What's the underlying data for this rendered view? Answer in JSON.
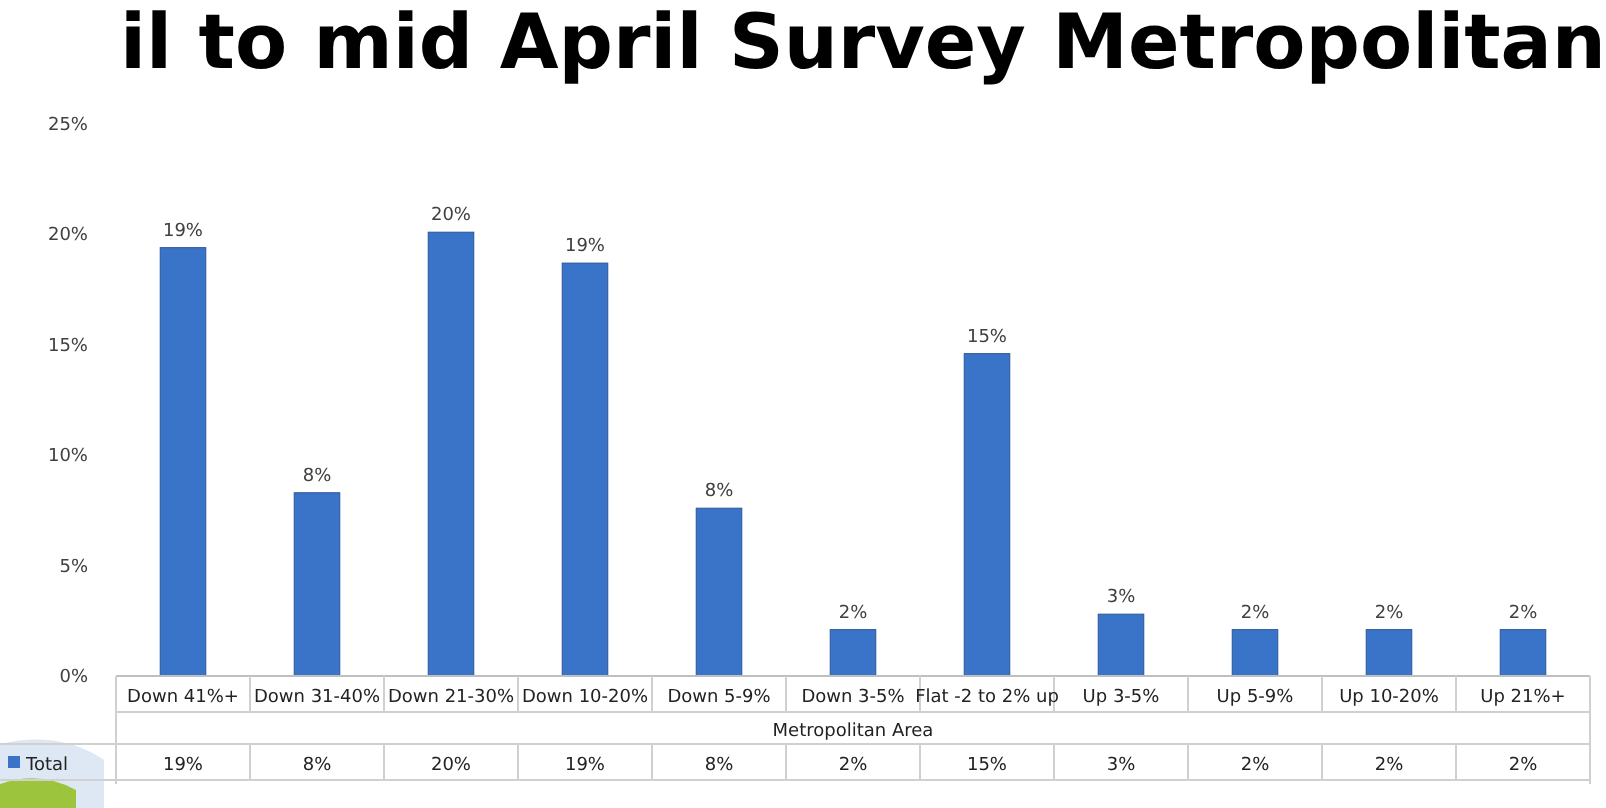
{
  "chart_data": {
    "type": "bar",
    "title": "il to mid April Survey Metropolitan",
    "xlabel": "Metropolitan Area",
    "categories": [
      "Down 41%+",
      "Down 31-40%",
      "Down 21-30%",
      "Down 10-20%",
      "Down 5-9%",
      "Down 3-5%",
      "Flat -2 to 2% up",
      "Up 3-5%",
      "Up 5-9%",
      "Up 10-20%",
      "Up 21%+"
    ],
    "series": [
      {
        "name": "Total",
        "color": "#3a74c8",
        "values": [
          19.4,
          8.3,
          20.1,
          18.7,
          7.6,
          2.1,
          14.6,
          2.8,
          2.1,
          2.1,
          2.1
        ],
        "value_labels": [
          "19%",
          "8%",
          "20%",
          "19%",
          "8%",
          "2%",
          "15%",
          "3%",
          "2%",
          "2%",
          "2%"
        ]
      }
    ],
    "ylim": [
      0,
      25
    ],
    "yticks": [
      {
        "value": 0,
        "label": "0%"
      },
      {
        "value": 5,
        "label": "5%"
      },
      {
        "value": 10,
        "label": "10%"
      },
      {
        "value": 15,
        "label": "15%"
      },
      {
        "value": 20,
        "label": "20%"
      },
      {
        "value": 25,
        "label": "25%"
      }
    ],
    "grid": false,
    "legend": "bottom"
  }
}
